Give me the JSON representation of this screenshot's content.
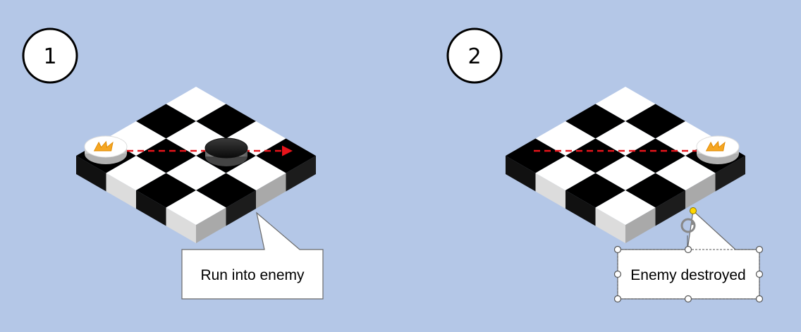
{
  "steps": [
    {
      "number": "1",
      "callout_text": "Run into enemy",
      "player_piece": "king-piece",
      "enemy_piece": "black-checker-piece",
      "path": "dashed-arrow-right"
    },
    {
      "number": "2",
      "callout_text": "Enemy destroyed",
      "player_piece": "king-piece",
      "enemy_piece": "",
      "path": "dashed-arrow-right"
    }
  ],
  "colors": {
    "background": "#b4c7e7",
    "dark_square": "#000000",
    "light_square": "#ffffff",
    "light_square_side": "#d0d0d0",
    "dark_square_side": "#111111",
    "arrow": "#e8141b",
    "crown": "#f5a623",
    "handle_yellow": "#ffd700"
  }
}
